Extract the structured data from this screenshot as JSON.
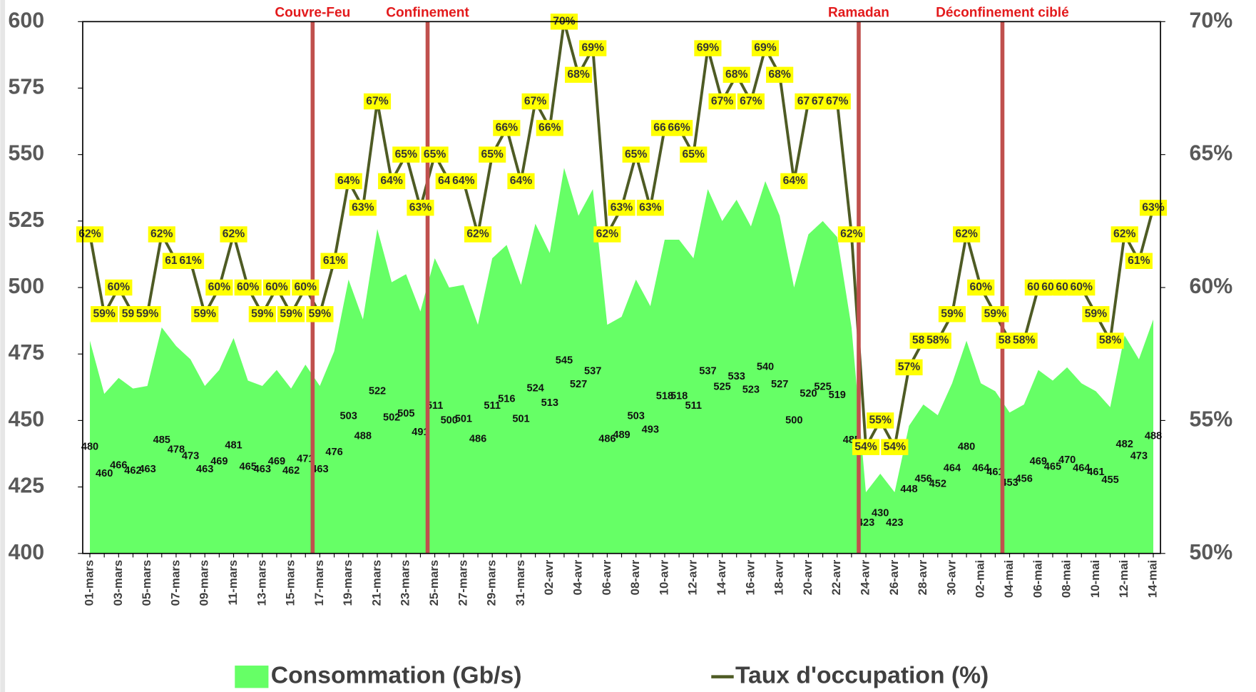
{
  "chart_data": {
    "type": "combo",
    "categories": [
      "01-mars",
      null,
      "03-mars",
      null,
      "05-mars",
      null,
      "07-mars",
      null,
      "09-mars",
      null,
      "11-mars",
      null,
      "13-mars",
      null,
      "15-mars",
      null,
      "17-mars",
      null,
      "19-mars",
      null,
      "21-mars",
      null,
      "23-mars",
      null,
      "25-mars",
      null,
      "27-mars",
      null,
      "29-mars",
      null,
      "31-mars",
      null,
      "02-avr",
      null,
      "04-avr",
      null,
      "06-avr",
      null,
      "08-avr",
      null,
      "10-avr",
      null,
      "12-avr",
      null,
      "14-avr",
      null,
      "16-avr",
      null,
      "18-avr",
      null,
      "20-avr",
      null,
      "22-avr",
      null,
      "24-avr",
      null,
      "26-avr",
      null,
      "28-avr",
      null,
      "30-avr",
      null,
      "02-mai",
      null,
      "04-mai",
      null,
      "06-mai",
      null,
      "08-mai",
      null,
      "10-mai",
      null,
      "12-mai",
      null,
      "14-mai"
    ],
    "series": [
      {
        "name": "Consommation (Gb/s)",
        "type": "area",
        "color": "#66ff66",
        "values": [
          480,
          460,
          466,
          462,
          463,
          485,
          478,
          473,
          463,
          469,
          481,
          465,
          463,
          469,
          462,
          471,
          463,
          476,
          503,
          488,
          522,
          502,
          505,
          491,
          511,
          500,
          501,
          486,
          511,
          516,
          501,
          524,
          513,
          545,
          527,
          537,
          486,
          489,
          503,
          493,
          518,
          518,
          511,
          537,
          525,
          533,
          523,
          540,
          527,
          500,
          520,
          525,
          519,
          485,
          423,
          430,
          423,
          448,
          456,
          452,
          464,
          480,
          464,
          461,
          453,
          456,
          469,
          465,
          470,
          464,
          461,
          455,
          482,
          473,
          488
        ]
      },
      {
        "name": "Taux d'occupation (%)",
        "type": "line",
        "axis": "y2",
        "color": "#4e5b24",
        "values": [
          62,
          59,
          60,
          59,
          59,
          62,
          61,
          61,
          59,
          60,
          62,
          60,
          59,
          60,
          59,
          60,
          59,
          61,
          64,
          63,
          67,
          64,
          65,
          63,
          65,
          64,
          64,
          62,
          65,
          66,
          64,
          67,
          66,
          70,
          68,
          69,
          62,
          63,
          65,
          63,
          66,
          66,
          65,
          69,
          67,
          68,
          67,
          69,
          68,
          64,
          67,
          67,
          67,
          62,
          54,
          55,
          54,
          57,
          58,
          58,
          59,
          62,
          60,
          59,
          58,
          58,
          60,
          60,
          60,
          60,
          59,
          58,
          62,
          61,
          63
        ],
        "value_labels": [
          "62%",
          "59%",
          "60%",
          "59%",
          "59%",
          "62%",
          "61%",
          "61%",
          "59%",
          "60%",
          "62%",
          "60%",
          "59%",
          "60%",
          "59%",
          "60%",
          "59%",
          "61%",
          "64%",
          "63%",
          "67%",
          "64%",
          "65%",
          "63%",
          "65%",
          "64%",
          "64%",
          "62%",
          "65%",
          "66%",
          "64%",
          "67%",
          "66%",
          "70%",
          "68%",
          "69%",
          "62%",
          "63%",
          "65%",
          "63%",
          "66%",
          "66%",
          "65%",
          "69%",
          "67%",
          "68%",
          "67%",
          "69%",
          "68%",
          "64%",
          "67%",
          "67%",
          "67%",
          "62%",
          "54%",
          "55%",
          "54%",
          "57%",
          "58%",
          "58%",
          "59%",
          "62%",
          "60%",
          "59%",
          "58%",
          "58%",
          "60%",
          "60%",
          "60%",
          "60%",
          "59%",
          "58%",
          "62%",
          "61%",
          "63%"
        ]
      }
    ],
    "ylim": [
      400,
      600
    ],
    "yticks": [
      400,
      425,
      450,
      475,
      500,
      525,
      550,
      575,
      600
    ],
    "y2lim": [
      50,
      70
    ],
    "y2ticks": [
      {
        "value": 50,
        "label": "50%"
      },
      {
        "value": 55,
        "label": "55%"
      },
      {
        "value": 60,
        "label": "60%"
      },
      {
        "value": 65,
        "label": "65%"
      },
      {
        "value": 70,
        "label": "70%"
      }
    ],
    "annotations": [
      {
        "text": "Couvre-Feu",
        "at": "17-mars",
        "color": "#c0504d"
      },
      {
        "text": "Confinement",
        "at": "25-mars",
        "color": "#c0504d"
      },
      {
        "text": "Ramadan",
        "at": "24-avr",
        "color": "#c0504d"
      },
      {
        "text": "Déconfinement ciblé",
        "at": "04-mai",
        "color": "#c0504d"
      }
    ],
    "legend": "bottom",
    "grid": false
  }
}
